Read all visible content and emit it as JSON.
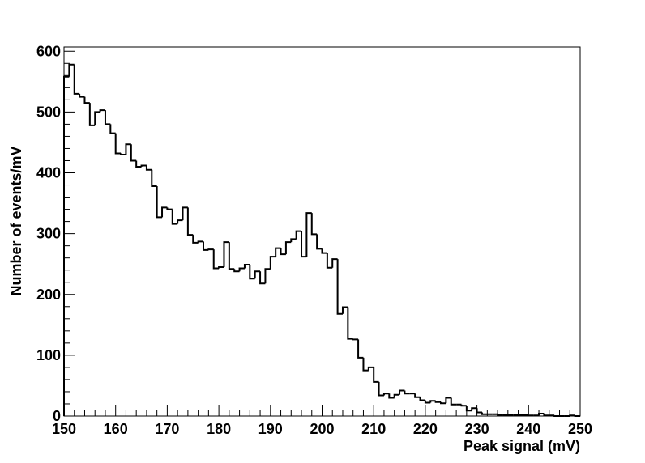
{
  "chart_data": {
    "type": "histogram",
    "x_label": "Peak signal (mV)",
    "y_label": "Number of events/mV",
    "color": "#000000",
    "bins": [
      150,
      151,
      152,
      153,
      154,
      155,
      156,
      157,
      158,
      159,
      160,
      161,
      162,
      163,
      164,
      165,
      166,
      167,
      168,
      169,
      170,
      171,
      172,
      173,
      174,
      175,
      176,
      177,
      178,
      179,
      180,
      181,
      182,
      183,
      184,
      185,
      186,
      187,
      188,
      189,
      190,
      191,
      192,
      193,
      194,
      195,
      196,
      197,
      198,
      199,
      200,
      201,
      202,
      203,
      204,
      205,
      206,
      207,
      208,
      209,
      210,
      211,
      212,
      213,
      214,
      215,
      216,
      217,
      218,
      219,
      220,
      221,
      222,
      223,
      224,
      225,
      226,
      227,
      228,
      229,
      230,
      231,
      232,
      233,
      234,
      235,
      236,
      237,
      238,
      239,
      240,
      241,
      242,
      243,
      244,
      245,
      246,
      247,
      248,
      249,
      250
    ],
    "values": [
      558,
      578,
      530,
      525,
      515,
      478,
      500,
      503,
      480,
      465,
      432,
      430,
      447,
      420,
      410,
      412,
      405,
      378,
      327,
      343,
      340,
      316,
      322,
      343,
      298,
      285,
      287,
      273,
      274,
      243,
      245,
      286,
      242,
      238,
      243,
      249,
      226,
      238,
      218,
      242,
      262,
      276,
      266,
      286,
      291,
      304,
      262,
      334,
      299,
      275,
      268,
      244,
      258,
      168,
      179,
      127,
      126,
      96,
      75,
      80,
      56,
      34,
      37,
      30,
      35,
      42,
      37,
      37,
      31,
      26,
      22,
      25,
      23,
      21,
      30,
      19,
      19,
      17,
      9,
      13,
      6,
      3,
      3,
      3,
      2,
      2,
      2,
      2,
      2,
      2,
      1,
      1,
      4,
      1,
      1,
      0,
      0,
      0,
      1,
      0
    ],
    "xlim": [
      150,
      250
    ],
    "xticks": [
      150,
      160,
      170,
      180,
      190,
      200,
      210,
      220,
      230,
      240,
      250
    ],
    "ylim": [
      0,
      607
    ],
    "yticks": [
      0,
      100,
      200,
      300,
      400,
      500,
      600
    ]
  }
}
